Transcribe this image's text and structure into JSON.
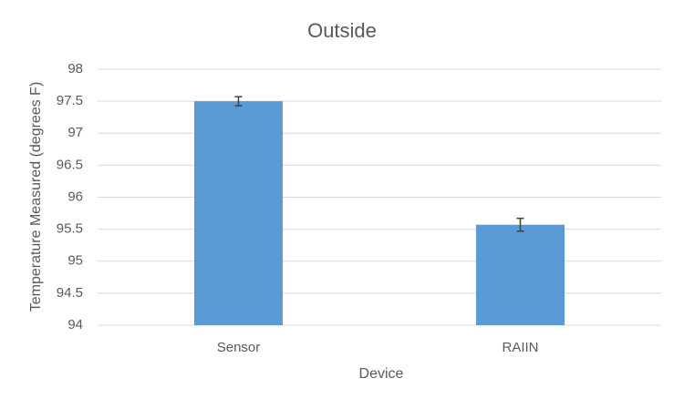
{
  "chart_data": {
    "type": "bar",
    "title": "Outside",
    "x_label": "Device",
    "y_label": "Temperature Measured (degrees F)",
    "categories": [
      "Sensor",
      "RAIIN"
    ],
    "values": [
      97.5,
      95.57
    ],
    "errors": [
      0.07,
      0.1
    ],
    "color": "#5b9bd5",
    "error_color": "#404040",
    "ylim": [
      94,
      98
    ],
    "yticks": [
      94,
      94.5,
      95,
      95.5,
      96,
      96.5,
      97,
      97.5,
      98
    ],
    "grid": true
  }
}
